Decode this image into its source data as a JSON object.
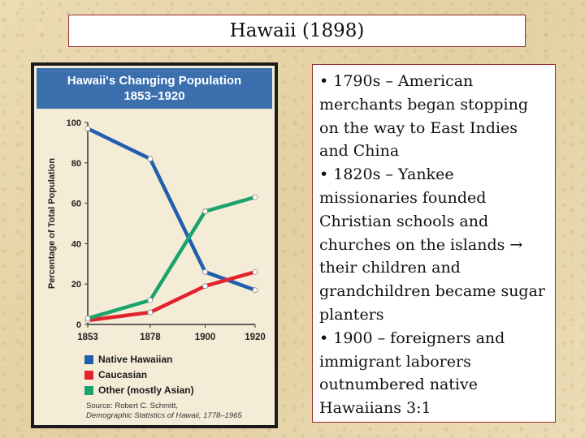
{
  "slide": {
    "title": "Hawaii (1898)",
    "bullets": [
      "• 1790s – American merchants began stopping on the way to East Indies and China",
      "• 1820s – Yankee missionaries founded Christian schools and churches on the islands → their children and grandchildren became sugar planters",
      "• 1900 – foreigners and immigrant laborers outnumbered native Hawaiians 3:1"
    ]
  },
  "chart_data": {
    "type": "line",
    "title": "Hawaii's Changing Population",
    "subtitle": "1853–1920",
    "xlabel": "",
    "ylabel": "Percentage of Total Population",
    "x": [
      1853,
      1878,
      1900,
      1920
    ],
    "ylim": [
      0,
      100
    ],
    "yticks": [
      0,
      20,
      40,
      60,
      80,
      100
    ],
    "grid": false,
    "legend_position": "bottom",
    "series": [
      {
        "name": "Native Hawaiian",
        "color": "#1f5fae",
        "values": [
          97,
          82,
          26,
          17
        ]
      },
      {
        "name": "Caucasian",
        "color": "#e3222e",
        "values": [
          2,
          6,
          19,
          26
        ]
      },
      {
        "name": "Other (mostly Asian)",
        "color": "#1aa36b",
        "values": [
          3,
          12,
          56,
          63
        ]
      }
    ],
    "source_lines": [
      "Source: Robert C. Schmitt,",
      "Demographic Statistics of Hawaii, 1778–1965"
    ]
  }
}
